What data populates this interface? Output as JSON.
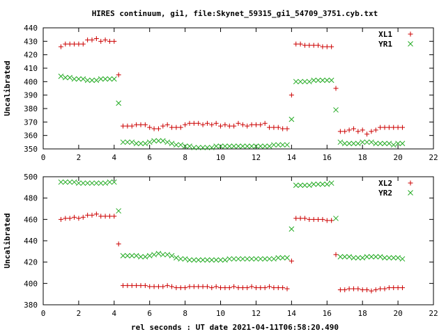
{
  "chart_data": {
    "title": "HIRES continuum, gi1, file:Skynet_59315_gi1_54709_3751.cyb.txt",
    "xlabel": "rel seconds : UT date 2021-04-11T06:58:20.490",
    "xlim": [
      0,
      22
    ],
    "xticks": [
      0,
      2,
      4,
      6,
      8,
      10,
      12,
      14,
      16,
      18,
      20,
      22
    ],
    "colors": {
      "XL": "#cc0000",
      "YR": "#22aa22"
    },
    "panels": [
      {
        "type": "scatter",
        "ylabel": "Uncalibrated",
        "ylim": [
          350,
          440
        ],
        "yticks": [
          350,
          360,
          370,
          380,
          390,
          400,
          410,
          420,
          430,
          440
        ],
        "legend_position": "top-right",
        "series": [
          {
            "name": "XL1",
            "marker": "plus",
            "x": [
              1.0,
              1.25,
              1.5,
              1.75,
              2.0,
              2.25,
              2.5,
              2.75,
              3.0,
              3.25,
              3.5,
              3.75,
              4.0,
              4.25,
              4.5,
              4.75,
              5.0,
              5.25,
              5.5,
              5.75,
              6.0,
              6.25,
              6.5,
              6.75,
              7.0,
              7.25,
              7.5,
              7.75,
              8.0,
              8.25,
              8.5,
              8.75,
              9.0,
              9.25,
              9.5,
              9.75,
              10.0,
              10.25,
              10.5,
              10.75,
              11.0,
              11.25,
              11.5,
              11.75,
              12.0,
              12.25,
              12.5,
              12.75,
              13.0,
              13.25,
              13.5,
              13.75,
              14.0,
              14.25,
              14.5,
              14.75,
              15.0,
              15.25,
              15.5,
              15.75,
              16.0,
              16.25,
              16.5,
              16.75,
              17.0,
              17.25,
              17.5,
              17.75,
              18.0,
              18.25,
              18.5,
              18.75,
              19.0,
              19.25,
              19.5,
              19.75,
              20.0,
              20.25
            ],
            "y": [
              426,
              428,
              428,
              428,
              428,
              428,
              431,
              431,
              432,
              430,
              431,
              430,
              430,
              405,
              367,
              367,
              367,
              368,
              368,
              368,
              366,
              365,
              365,
              367,
              368,
              366,
              366,
              366,
              368,
              369,
              369,
              369,
              368,
              369,
              368,
              369,
              367,
              368,
              367,
              367,
              369,
              368,
              367,
              368,
              368,
              368,
              369,
              366,
              366,
              366,
              365,
              365,
              390,
              428,
              428,
              427,
              427,
              427,
              427,
              426,
              426,
              426,
              395,
              363,
              363,
              364,
              365,
              363,
              364,
              361,
              363,
              364,
              366,
              366,
              366,
              366,
              366,
              366
            ]
          },
          {
            "name": "YR1",
            "marker": "cross",
            "x": [
              1.0,
              1.25,
              1.5,
              1.75,
              2.0,
              2.25,
              2.5,
              2.75,
              3.0,
              3.25,
              3.5,
              3.75,
              4.0,
              4.25,
              4.5,
              4.75,
              5.0,
              5.25,
              5.5,
              5.75,
              6.0,
              6.25,
              6.5,
              6.75,
              7.0,
              7.25,
              7.5,
              7.75,
              8.0,
              8.25,
              8.5,
              8.75,
              9.0,
              9.25,
              9.5,
              9.75,
              10.0,
              10.25,
              10.5,
              10.75,
              11.0,
              11.25,
              11.5,
              11.75,
              12.0,
              12.25,
              12.5,
              12.75,
              13.0,
              13.25,
              13.5,
              13.75,
              14.0,
              14.25,
              14.5,
              14.75,
              15.0,
              15.25,
              15.5,
              15.75,
              16.0,
              16.25,
              16.5,
              16.75,
              17.0,
              17.25,
              17.5,
              17.75,
              18.0,
              18.25,
              18.5,
              18.75,
              19.0,
              19.25,
              19.5,
              19.75,
              20.0,
              20.25
            ],
            "y": [
              404,
              403,
              403,
              402,
              402,
              402,
              401,
              401,
              401,
              402,
              402,
              402,
              402,
              384,
              355,
              355,
              355,
              354,
              354,
              354,
              355,
              356,
              356,
              356,
              355,
              354,
              353,
              353,
              352,
              352,
              351,
              351,
              351,
              351,
              351,
              352,
              352,
              352,
              352,
              352,
              352,
              352,
              352,
              352,
              352,
              352,
              352,
              352,
              353,
              353,
              353,
              353,
              372,
              400,
              400,
              400,
              400,
              401,
              401,
              401,
              401,
              401,
              379,
              355,
              354,
              354,
              354,
              354,
              355,
              355,
              355,
              354,
              354,
              354,
              354,
              353,
              354,
              354
            ]
          }
        ]
      },
      {
        "type": "scatter",
        "ylabel": "Uncalibrated",
        "ylim": [
          380,
          500
        ],
        "yticks": [
          380,
          400,
          420,
          440,
          460,
          480,
          500
        ],
        "legend_position": "top-right",
        "series": [
          {
            "name": "XL2",
            "marker": "plus",
            "x": [
              1.0,
              1.25,
              1.5,
              1.75,
              2.0,
              2.25,
              2.5,
              2.75,
              3.0,
              3.25,
              3.5,
              3.75,
              4.0,
              4.25,
              4.5,
              4.75,
              5.0,
              5.25,
              5.5,
              5.75,
              6.0,
              6.25,
              6.5,
              6.75,
              7.0,
              7.25,
              7.5,
              7.75,
              8.0,
              8.25,
              8.5,
              8.75,
              9.0,
              9.25,
              9.5,
              9.75,
              10.0,
              10.25,
              10.5,
              10.75,
              11.0,
              11.25,
              11.5,
              11.75,
              12.0,
              12.25,
              12.5,
              12.75,
              13.0,
              13.25,
              13.5,
              13.75,
              14.0,
              14.25,
              14.5,
              14.75,
              15.0,
              15.25,
              15.5,
              15.75,
              16.0,
              16.25,
              16.5,
              16.75,
              17.0,
              17.25,
              17.5,
              17.75,
              18.0,
              18.25,
              18.5,
              18.75,
              19.0,
              19.25,
              19.5,
              19.75,
              20.0,
              20.25
            ],
            "y": [
              460,
              461,
              461,
              462,
              461,
              462,
              464,
              464,
              465,
              463,
              463,
              463,
              463,
              437,
              398,
              398,
              398,
              398,
              398,
              398,
              397,
              397,
              397,
              397,
              398,
              397,
              396,
              396,
              396,
              397,
              397,
              397,
              397,
              397,
              396,
              397,
              396,
              396,
              396,
              397,
              396,
              396,
              396,
              397,
              396,
              396,
              396,
              397,
              396,
              396,
              396,
              395,
              421,
              461,
              461,
              461,
              460,
              460,
              460,
              460,
              459,
              459,
              427,
              394,
              394,
              395,
              395,
              395,
              394,
              394,
              393,
              394,
              395,
              395,
              396,
              396,
              396,
              396
            ]
          },
          {
            "name": "YR2",
            "marker": "cross",
            "x": [
              1.0,
              1.25,
              1.5,
              1.75,
              2.0,
              2.25,
              2.5,
              2.75,
              3.0,
              3.25,
              3.5,
              3.75,
              4.0,
              4.25,
              4.5,
              4.75,
              5.0,
              5.25,
              5.5,
              5.75,
              6.0,
              6.25,
              6.5,
              6.75,
              7.0,
              7.25,
              7.5,
              7.75,
              8.0,
              8.25,
              8.5,
              8.75,
              9.0,
              9.25,
              9.5,
              9.75,
              10.0,
              10.25,
              10.5,
              10.75,
              11.0,
              11.25,
              11.5,
              11.75,
              12.0,
              12.25,
              12.5,
              12.75,
              13.0,
              13.25,
              13.5,
              13.75,
              14.0,
              14.25,
              14.5,
              14.75,
              15.0,
              15.25,
              15.5,
              15.75,
              16.0,
              16.25,
              16.5,
              16.75,
              17.0,
              17.25,
              17.5,
              17.75,
              18.0,
              18.25,
              18.5,
              18.75,
              19.0,
              19.25,
              19.5,
              19.75,
              20.0,
              20.25
            ],
            "y": [
              495,
              495,
              495,
              495,
              494,
              494,
              494,
              494,
              494,
              494,
              494,
              495,
              495,
              468,
              426,
              426,
              426,
              426,
              425,
              425,
              426,
              427,
              428,
              427,
              427,
              426,
              424,
              423,
              423,
              422,
              422,
              422,
              422,
              422,
              422,
              422,
              422,
              422,
              423,
              423,
              423,
              423,
              423,
              423,
              423,
              423,
              423,
              423,
              423,
              424,
              424,
              424,
              451,
              492,
              492,
              492,
              492,
              493,
              493,
              493,
              493,
              494,
              461,
              425,
              425,
              425,
              424,
              424,
              424,
              425,
              425,
              425,
              425,
              424,
              424,
              424,
              424,
              423
            ]
          }
        ]
      }
    ]
  }
}
